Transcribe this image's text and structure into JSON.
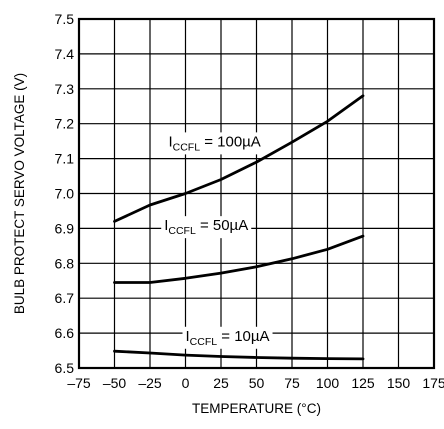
{
  "chart_data": {
    "type": "line",
    "xlabel": "TEMPERATURE (°C)",
    "ylabel": "BULB PROTECT SERVO VOLTAGE (V)",
    "xlim": [
      -75,
      175
    ],
    "ylim": [
      6.5,
      7.5
    ],
    "xticks": [
      -75,
      -50,
      -25,
      0,
      25,
      50,
      75,
      100,
      125,
      150,
      175
    ],
    "xtick_labels": [
      "–75",
      "–50",
      "–25",
      "0",
      "25",
      "50",
      "75",
      "100",
      "125",
      "150",
      "175"
    ],
    "yticks": [
      6.5,
      6.6,
      6.7,
      6.8,
      6.9,
      7.0,
      7.1,
      7.2,
      7.3,
      7.4,
      7.5
    ],
    "ytick_labels": [
      "6.5",
      "6.6",
      "6.7",
      "6.8",
      "6.9",
      "7.0",
      "7.1",
      "7.2",
      "7.3",
      "7.4",
      "7.5"
    ],
    "grid": true,
    "legend": "none (curves labeled inline)",
    "series_color": "#000000",
    "series": [
      {
        "label_main": "I",
        "label_sub": "CCFL",
        "label_value": " = 100µA",
        "x": [
          -50,
          -25,
          0,
          25,
          50,
          75,
          100,
          125
        ],
        "y": [
          6.92,
          6.967,
          7.0,
          7.04,
          7.09,
          7.147,
          7.207,
          7.28
        ]
      },
      {
        "label_main": "I",
        "label_sub": "CCFL",
        "label_value": " = 50µA",
        "x": [
          -50,
          -25,
          0,
          25,
          50,
          75,
          100,
          125
        ],
        "y": [
          6.745,
          6.745,
          6.757,
          6.772,
          6.79,
          6.813,
          6.84,
          6.878
        ]
      },
      {
        "label_main": "I",
        "label_sub": "CCFL",
        "label_value": " = 10µA",
        "x": [
          -50,
          -25,
          0,
          25,
          50,
          75,
          100,
          125
        ],
        "y": [
          6.548,
          6.543,
          6.537,
          6.533,
          6.53,
          6.528,
          6.527,
          6.526
        ]
      }
    ]
  }
}
